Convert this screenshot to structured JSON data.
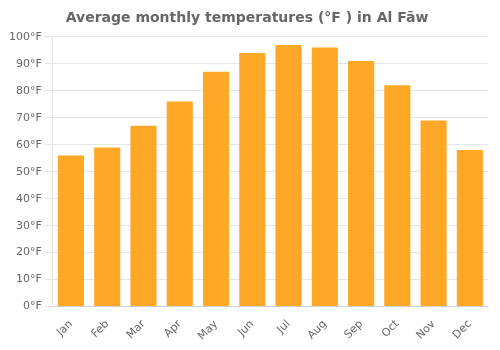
{
  "chart_data": {
    "type": "bar",
    "title": "Average monthly temperatures (°F ) in Al Fāw",
    "categories": [
      "Jan",
      "Feb",
      "Mar",
      "Apr",
      "May",
      "Jun",
      "Jul",
      "Aug",
      "Sep",
      "Oct",
      "Nov",
      "Dec"
    ],
    "values": [
      56,
      59,
      67,
      76,
      87,
      94,
      97,
      96,
      91,
      82,
      69,
      58
    ],
    "color": "#FFA726",
    "ylim": [
      0,
      100
    ],
    "yticks": [
      {
        "value": 0,
        "label": "0°F"
      },
      {
        "value": 10,
        "label": "10°F"
      },
      {
        "value": 20,
        "label": "20°F"
      },
      {
        "value": 30,
        "label": "30°F"
      },
      {
        "value": 40,
        "label": "40°F"
      },
      {
        "value": 50,
        "label": "50°F"
      },
      {
        "value": 60,
        "label": "60°F"
      },
      {
        "value": 70,
        "label": "70°F"
      },
      {
        "value": 80,
        "label": "80°F"
      },
      {
        "value": 90,
        "label": "90°F"
      },
      {
        "value": 100,
        "label": "100°F"
      }
    ],
    "grid": true
  }
}
